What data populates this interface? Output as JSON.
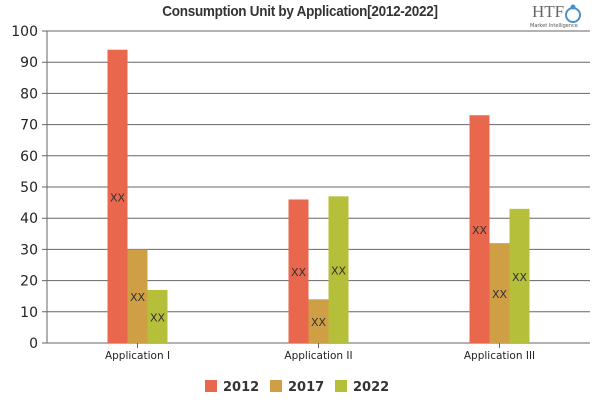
{
  "chart_data": {
    "type": "bar",
    "title": "Consumption Unit by  Application[2012-2022]",
    "categories": [
      "Application I",
      "Application II",
      "Application III"
    ],
    "series": [
      {
        "name": "2012",
        "color": "#e8674d",
        "values": [
          94,
          46,
          73
        ]
      },
      {
        "name": "2017",
        "color": "#cf9f45",
        "values": [
          30,
          14,
          32
        ]
      },
      {
        "name": "2022",
        "color": "#b5bf39",
        "values": [
          17,
          47,
          43
        ]
      }
    ],
    "data_label": "XX",
    "ylim": [
      0,
      100
    ],
    "yticks": [
      0,
      10,
      20,
      30,
      40,
      50,
      60,
      70,
      80,
      90,
      100
    ],
    "grid": true,
    "legend": "bottom"
  },
  "logo": {
    "text": "HTF",
    "subtext": "Market Intelligence"
  }
}
